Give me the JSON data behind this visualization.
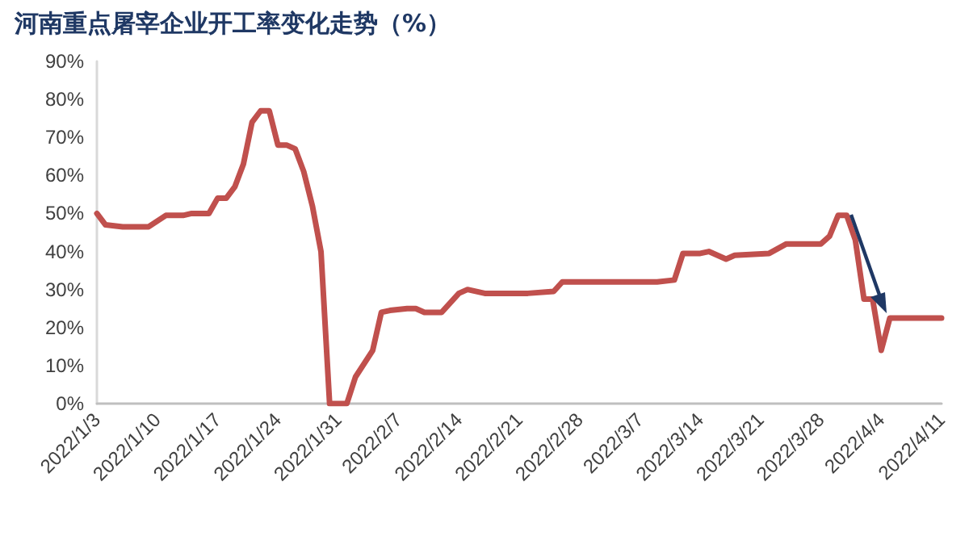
{
  "chart_data": {
    "type": "line",
    "title": "河南重点屠宰企业开工率变化走势（%）",
    "x": [
      "2022-01-03",
      "2022-01-04",
      "2022-01-06",
      "2022-01-09",
      "2022-01-11",
      "2022-01-13",
      "2022-01-14",
      "2022-01-16",
      "2022-01-17",
      "2022-01-18",
      "2022-01-19",
      "2022-01-20",
      "2022-01-21",
      "2022-01-22",
      "2022-01-23",
      "2022-01-24",
      "2022-01-25",
      "2022-01-26",
      "2022-01-27",
      "2022-01-28",
      "2022-01-29",
      "2022-01-30",
      "2022-02-01",
      "2022-02-02",
      "2022-02-04",
      "2022-02-05",
      "2022-02-06",
      "2022-02-08",
      "2022-02-09",
      "2022-02-10",
      "2022-02-12",
      "2022-02-14",
      "2022-02-15",
      "2022-02-17",
      "2022-02-22",
      "2022-02-25",
      "2022-02-26",
      "2022-03-09",
      "2022-03-11",
      "2022-03-12",
      "2022-03-14",
      "2022-03-15",
      "2022-03-17",
      "2022-03-18",
      "2022-03-22",
      "2022-03-24",
      "2022-03-28",
      "2022-03-29",
      "2022-03-30",
      "2022-03-31",
      "2022-04-01",
      "2022-04-02",
      "2022-04-03",
      "2022-04-04",
      "2022-04-05",
      "2022-04-11"
    ],
    "series": [
      {
        "color": "#c0504d",
        "values": [
          50,
          47,
          46.5,
          46.5,
          49.5,
          49.5,
          50,
          50,
          54,
          54,
          57,
          63,
          74,
          77,
          77,
          68,
          68,
          67,
          61,
          52,
          40,
          0,
          0,
          7,
          14,
          24,
          24.5,
          25,
          25,
          24,
          24,
          29,
          30,
          29,
          29,
          29.5,
          32,
          32,
          32.5,
          39.5,
          39.5,
          40,
          38,
          39,
          39.5,
          42,
          42,
          44,
          49.5,
          49.5,
          43,
          27.5,
          27.5,
          14,
          22.5,
          22.5
        ]
      }
    ],
    "xlim": [
      "2022-01-03",
      "2022-04-11"
    ],
    "xticks": [
      {
        "value": "2022-01-03",
        "label": "2022/1/3"
      },
      {
        "value": "2022-01-10",
        "label": "2022/1/10"
      },
      {
        "value": "2022-01-17",
        "label": "2022/1/17"
      },
      {
        "value": "2022-01-24",
        "label": "2022/1/24"
      },
      {
        "value": "2022-01-31",
        "label": "2022/1/31"
      },
      {
        "value": "2022-02-07",
        "label": "2022/2/7"
      },
      {
        "value": "2022-02-14",
        "label": "2022/2/14"
      },
      {
        "value": "2022-02-21",
        "label": "2022/2/21"
      },
      {
        "value": "2022-02-28",
        "label": "2022/2/28"
      },
      {
        "value": "2022-03-07",
        "label": "2022/3/7"
      },
      {
        "value": "2022-03-14",
        "label": "2022/3/14"
      },
      {
        "value": "2022-03-21",
        "label": "2022/3/21"
      },
      {
        "value": "2022-03-28",
        "label": "2022/3/28"
      },
      {
        "value": "2022-04-04",
        "label": "2022/4/4"
      },
      {
        "value": "2022-04-11",
        "label": "2022/4/11"
      }
    ],
    "ylim": [
      0,
      90
    ],
    "yticks": [
      {
        "value": 0,
        "label": "0%"
      },
      {
        "value": 10,
        "label": "10%"
      },
      {
        "value": 20,
        "label": "20%"
      },
      {
        "value": 30,
        "label": "30%"
      },
      {
        "value": 40,
        "label": "40%"
      },
      {
        "value": 50,
        "label": "50%"
      },
      {
        "value": 60,
        "label": "60%"
      },
      {
        "value": 70,
        "label": "70%"
      },
      {
        "value": 80,
        "label": "80%"
      },
      {
        "value": 90,
        "label": "90%"
      }
    ],
    "grid": false,
    "marker": "none",
    "line_style": "solid"
  }
}
